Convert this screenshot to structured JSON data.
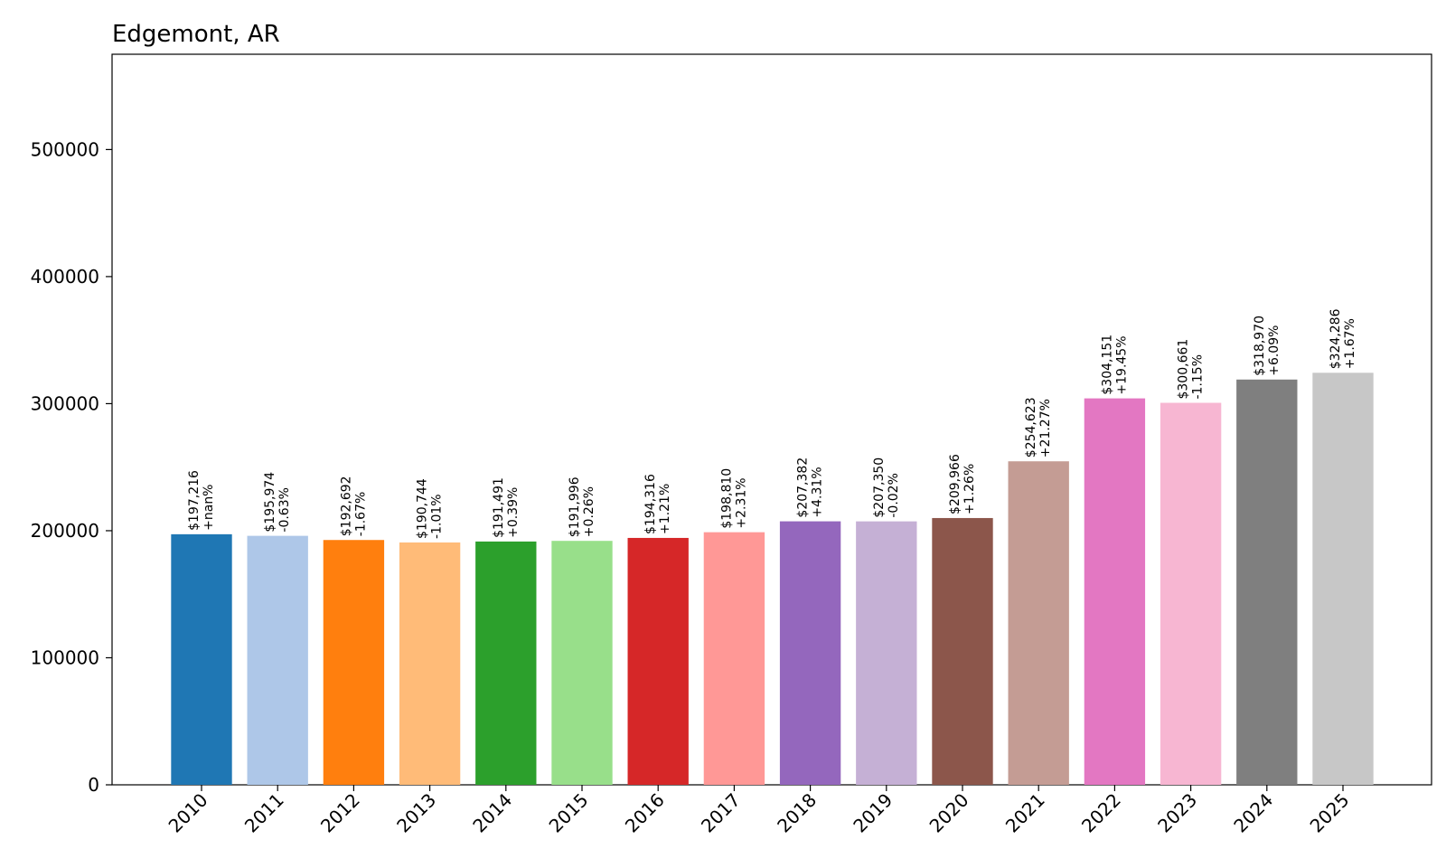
{
  "chart_data": {
    "type": "bar",
    "title": "Edgemont, AR",
    "xlabel": "",
    "ylabel": "",
    "ylim": [
      0,
      575000
    ],
    "yticks": [
      "0",
      "100000",
      "200000",
      "300000",
      "400000",
      "500000"
    ],
    "ytick_values": [
      0,
      100000,
      200000,
      300000,
      400000,
      500000
    ],
    "categories": [
      "2010",
      "2011",
      "2012",
      "2013",
      "2014",
      "2015",
      "2016",
      "2017",
      "2018",
      "2019",
      "2020",
      "2021",
      "2022",
      "2023",
      "2024",
      "2025"
    ],
    "values": [
      197216,
      195974,
      192692,
      190744,
      191491,
      191996,
      194316,
      198810,
      207382,
      207350,
      209966,
      254623,
      304151,
      300661,
      318970,
      324286
    ],
    "value_labels": [
      "$197,216",
      "$195,974",
      "$192,692",
      "$190,744",
      "$191,491",
      "$191,996",
      "$194,316",
      "$198,810",
      "$207,382",
      "$207,350",
      "$209,966",
      "$254,623",
      "$304,151",
      "$300,661",
      "$318,970",
      "$324,286"
    ],
    "change_labels": [
      "+nan%",
      "-0.63%",
      "-1.67%",
      "-1.01%",
      "+0.39%",
      "+0.26%",
      "+1.21%",
      "+2.31%",
      "+4.31%",
      "-0.02%",
      "+1.26%",
      "+21.27%",
      "+19.45%",
      "-1.15%",
      "+6.09%",
      "+1.67%"
    ],
    "colors": [
      "#1f77b4",
      "#aec7e8",
      "#ff7f0e",
      "#ffbb78",
      "#2ca02c",
      "#98df8a",
      "#d62728",
      "#ff9896",
      "#9467bd",
      "#c5b0d5",
      "#8c564b",
      "#c49c94",
      "#e377c2",
      "#f7b6d2",
      "#7f7f7f",
      "#c7c7c7"
    ],
    "grid": false,
    "legend": "none"
  }
}
